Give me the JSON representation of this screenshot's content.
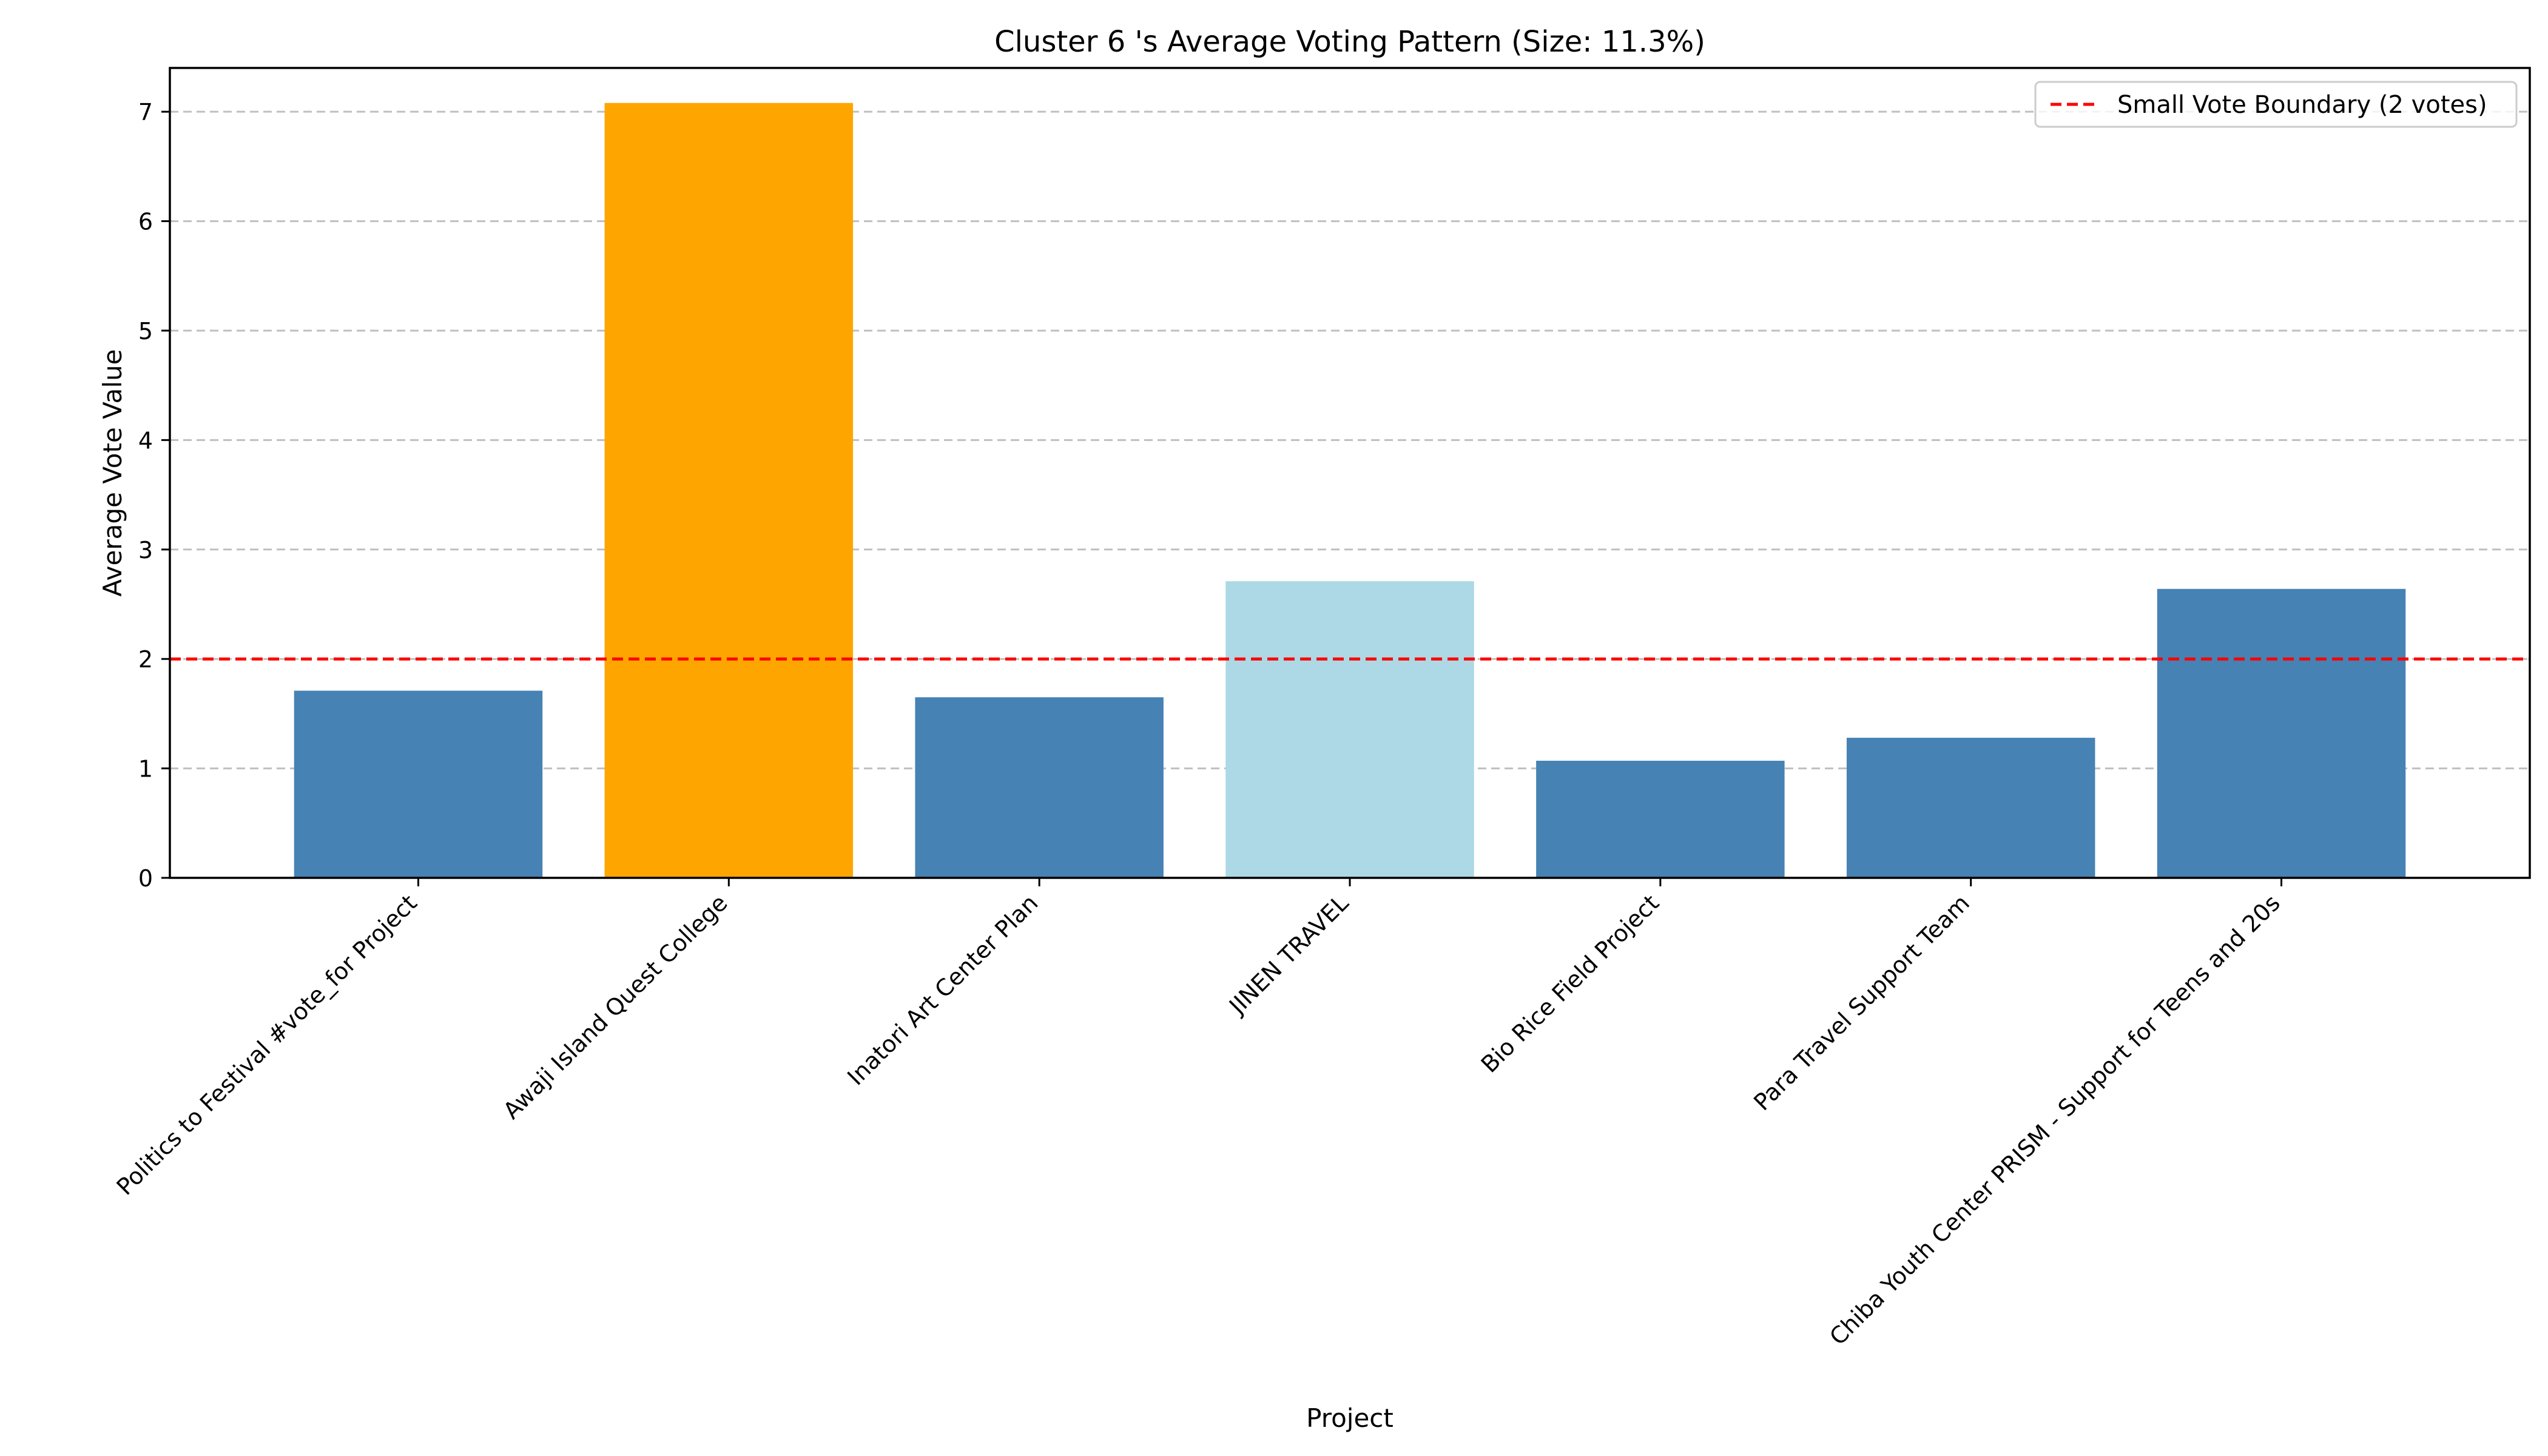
{
  "chart_data": {
    "type": "bar",
    "title": "Cluster 6 's Average Voting Pattern (Size: 11.3%)",
    "xlabel": "Project",
    "ylabel": "Average Vote Value",
    "ylim": [
      0,
      7.4
    ],
    "yticks": [
      0,
      1,
      2,
      3,
      4,
      5,
      6,
      7
    ],
    "grid": "y",
    "legend_position": "top-right",
    "categories": [
      "Politics to Festival #vote_for Project",
      "Awaji Island Quest College",
      "Inatori Art Center Plan",
      "JINEN TRAVEL",
      "Bio Rice Field Project",
      "Para Travel Support Team",
      "Chiba Youth Center PRISM - Support for Teens and 20s"
    ],
    "values": [
      1.71,
      7.08,
      1.65,
      2.71,
      1.07,
      1.28,
      2.64
    ],
    "bar_colors": [
      "#4682b4",
      "#ffa500",
      "#4682b4",
      "#add8e6",
      "#4682b4",
      "#4682b4",
      "#4682b4"
    ],
    "reference_line": {
      "value": 2,
      "label": "Small Vote Boundary (2 votes)",
      "color": "#ff0000",
      "style": "dashed"
    }
  }
}
